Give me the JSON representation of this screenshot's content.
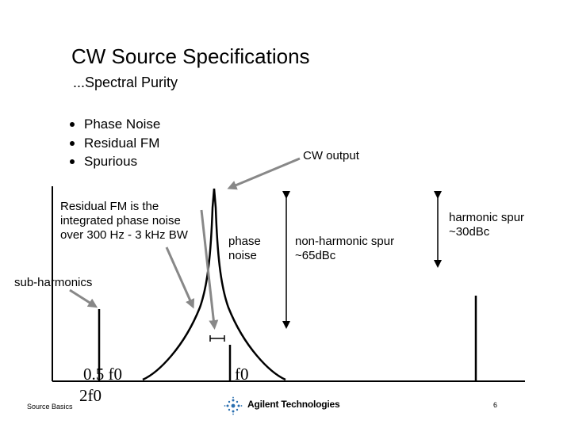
{
  "title": "CW Source Specifications",
  "subtitle": "...Spectral Purity",
  "bullets": [
    "Phase Noise",
    "Residual FM",
    "Spurious"
  ],
  "note": "Residual FM is the\nintegrated phase noise\nover 300 Hz - 3 kHz BW",
  "labels": {
    "cw_output": "CW output",
    "phase_noise": "phase\nnoise",
    "non_harmonic": "non-harmonic spur\n~65dBc",
    "harmonic": "harmonic spur\n~30dBc",
    "sub_harmonics": "sub-harmonics"
  },
  "freq_labels": {
    "half_f0": "0.5 f0",
    "f0": "f0",
    "two_f0": "2f0"
  },
  "footer": {
    "left": "Source Basics",
    "company": "Agilent Technologies",
    "page": "6"
  },
  "colors": {
    "arrow_gray": "#888888",
    "line": "#000000"
  }
}
